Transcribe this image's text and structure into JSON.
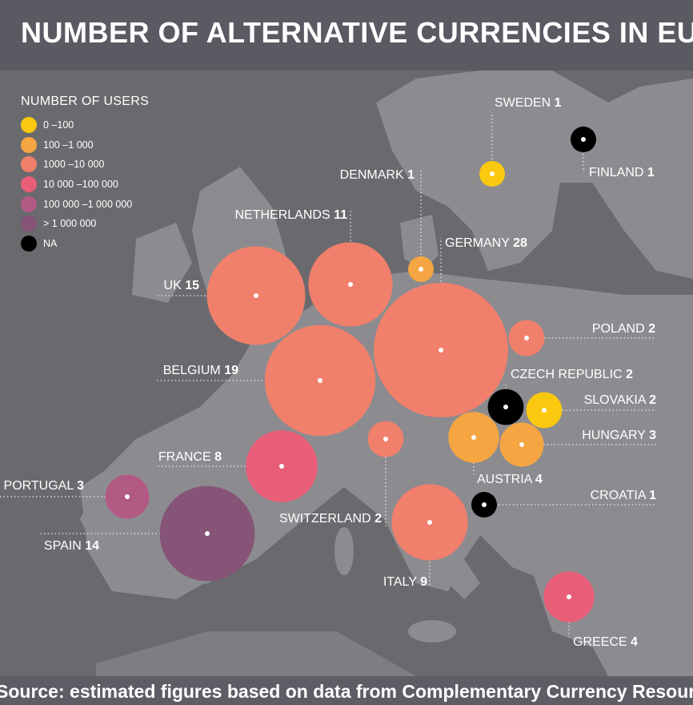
{
  "title": "NUMBER OF ALTERNATIVE CURRENCIES IN EUROPE",
  "source": "Source: estimated figures based on data from Complementary Currency Resource Center",
  "colors": {
    "0_100": "#f9c80f",
    "100_1000": "#f5a541",
    "1000_10000": "#f07f6b",
    "10000_100000": "#e85e79",
    "100000_1000000": "#b25a84",
    "gt_1000000": "#855477",
    "na": "#000000",
    "header_bg": "#5a5b62",
    "map_bg": "#6a6a6e",
    "land": "#8c8c90"
  },
  "legend": {
    "title": "NUMBER OF USERS",
    "items": [
      {
        "label": "0 –100",
        "color": "#f9c80f"
      },
      {
        "label": "100 –1 000",
        "color": "#f5a541"
      },
      {
        "label": "1000 –10 000",
        "color": "#f07f6b"
      },
      {
        "label": "10 000 –100 000",
        "color": "#e85e79"
      },
      {
        "label": "100 000 –1 000 000",
        "color": "#b25a84"
      },
      {
        "label": "> 1 000 000",
        "color": "#855477"
      },
      {
        "label": "NA",
        "color": "#000000"
      }
    ]
  },
  "chart_data": {
    "type": "bubble-map",
    "title": "NUMBER OF ALTERNATIVE CURRENCIES IN EUROPE",
    "size_encodes": "number of alternative currencies",
    "color_encodes": "NUMBER OF USERS",
    "countries": [
      {
        "name": "SWEDEN",
        "value": 1,
        "users": "0 –100"
      },
      {
        "name": "FINLAND",
        "value": 1,
        "users": "NA"
      },
      {
        "name": "DENMARK",
        "value": 1,
        "users": "100 –1 000"
      },
      {
        "name": "NETHERLANDS",
        "value": 11,
        "users": "1000 –10 000"
      },
      {
        "name": "GERMANY",
        "value": 28,
        "users": "1000 –10 000"
      },
      {
        "name": "UK",
        "value": 15,
        "users": "1000 –10 000"
      },
      {
        "name": "POLAND",
        "value": 2,
        "users": "1000 –10 000"
      },
      {
        "name": "BELGIUM",
        "value": 19,
        "users": "1000 –10 000"
      },
      {
        "name": "CZECH REPUBLIC",
        "value": 2,
        "users": "NA"
      },
      {
        "name": "SLOVAKIA",
        "value": 2,
        "users": "0 –100"
      },
      {
        "name": "HUNGARY",
        "value": 3,
        "users": "100 –1 000"
      },
      {
        "name": "AUSTRIA",
        "value": 4,
        "users": "100 –1 000"
      },
      {
        "name": "FRANCE",
        "value": 8,
        "users": "10 000 –100 000"
      },
      {
        "name": "SWITZERLAND",
        "value": 2,
        "users": "1000 –10 000"
      },
      {
        "name": "CROATIA",
        "value": 1,
        "users": "NA"
      },
      {
        "name": "PORTUGAL",
        "value": 3,
        "users": "100 000 –1 000 000"
      },
      {
        "name": "SPAIN",
        "value": 14,
        "users": "> 1 000 000"
      },
      {
        "name": "ITALY",
        "value": 9,
        "users": "1000 –10 000"
      },
      {
        "name": "GREECE",
        "value": 4,
        "users": "10 000 –100 000"
      }
    ]
  }
}
